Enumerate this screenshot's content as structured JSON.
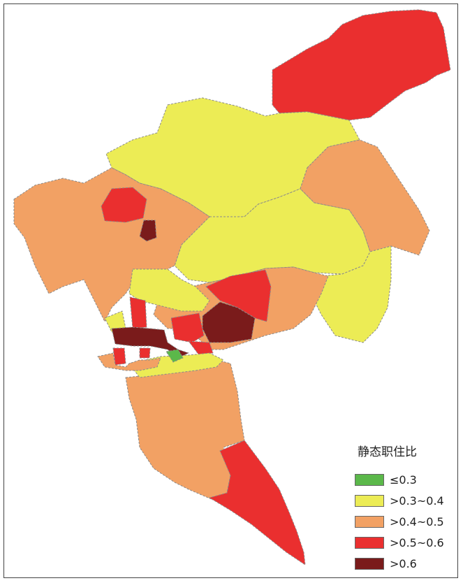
{
  "legend": {
    "title": "静态职住比",
    "items": [
      {
        "label": "≤0.3",
        "color": "#5bb84a"
      },
      {
        "label": ">0.3~0.4",
        "color": "#ecec55"
      },
      {
        "label": ">0.4~0.5",
        "color": "#f2a164"
      },
      {
        "label": ">0.5~0.6",
        "color": "#ea2f2f"
      },
      {
        "label": ">0.6",
        "color": "#7a1b1b"
      }
    ]
  }
}
